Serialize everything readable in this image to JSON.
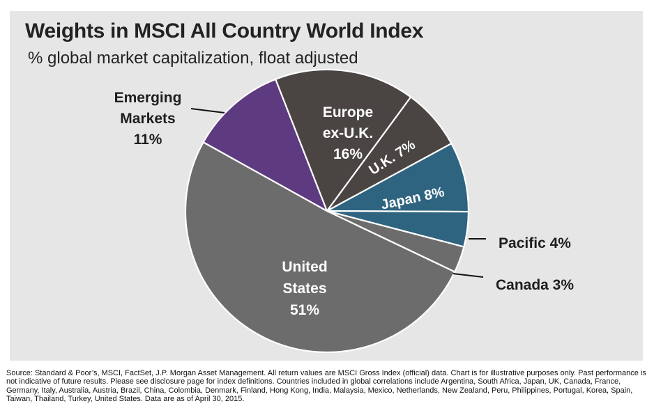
{
  "colors": {
    "background": "#e6e6e6",
    "united_states": "#6c6c6c",
    "europe_ex_uk": "#4a4543",
    "uk": "#4a4543",
    "japan": "#2f6480",
    "pacific": "#2f6480",
    "canada": "#6c6c6c",
    "emerging_markets": "#5e3a80"
  },
  "chart_data": {
    "type": "pie",
    "title": "Weights in MSCI All Country World Index",
    "subtitle": "% global market capitalization, float adjusted",
    "slices": [
      {
        "key": "united-states",
        "label_lines": [
          "United",
          "States",
          "51%"
        ],
        "value": 51,
        "color": "#6c6c6c",
        "label_placement": "inside"
      },
      {
        "key": "emerging-markets",
        "label_lines": [
          "Emerging",
          "Markets",
          "11%"
        ],
        "value": 11,
        "color": "#5e3a80",
        "label_placement": "outside"
      },
      {
        "key": "europe-ex-uk",
        "label_lines": [
          "Europe",
          "ex-U.K.",
          "16%"
        ],
        "value": 16,
        "color": "#4a4543",
        "label_placement": "inside"
      },
      {
        "key": "uk",
        "label_lines": [
          "U.K. 7%"
        ],
        "value": 7,
        "color": "#4a4543",
        "label_placement": "inside-rotated"
      },
      {
        "key": "japan",
        "label_lines": [
          "Japan 8%"
        ],
        "value": 8,
        "color": "#2f6480",
        "label_placement": "inside-rotated"
      },
      {
        "key": "pacific",
        "label_lines": [
          "Pacific 4%"
        ],
        "value": 4,
        "color": "#2f6480",
        "label_placement": "outside"
      },
      {
        "key": "canada",
        "label_lines": [
          "Canada 3%"
        ],
        "value": 3,
        "color": "#6c6c6c",
        "label_placement": "outside"
      }
    ]
  },
  "footnote": "Source: Standard & Poor’s, MSCI, FactSet, J.P. Morgan Asset Management. All return values are MSCI Gross Index (official) data. Chart is for illustrative purposes only. Past performance is not indicative of future results. Please see disclosure page for index definitions. Countries included in global correlations include Argentina, South Africa, Japan, UK, Canada, France, Germany, Italy, Australia, Austria, Brazil, China, Colombia, Denmark, Finland, Hong Kong, India, Malaysia, Mexico, Netherlands, New Zealand, Peru, Philippines, Portugal, Korea, Spain, Taiwan, Thailand, Turkey, United States. Data are as of April 30, 2015."
}
